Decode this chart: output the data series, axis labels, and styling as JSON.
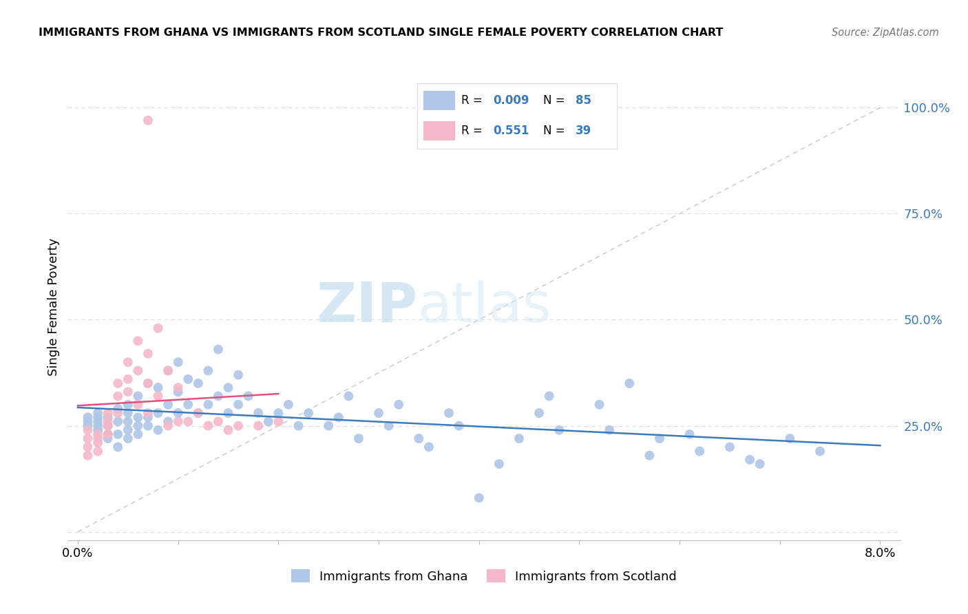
{
  "title": "IMMIGRANTS FROM GHANA VS IMMIGRANTS FROM SCOTLAND SINGLE FEMALE POVERTY CORRELATION CHART",
  "source": "Source: ZipAtlas.com",
  "ylabel": "Single Female Poverty",
  "ghana_R": 0.009,
  "ghana_N": 85,
  "scotland_R": 0.551,
  "scotland_N": 39,
  "ghana_color": "#aec6e8",
  "scotland_color": "#f5b8c8",
  "ghana_line_color": "#3a7abf",
  "scotland_line_color": "#e0507a",
  "diagonal_color": "#c8c8c8",
  "watermark_zip": "ZIP",
  "watermark_atlas": "atlas",
  "xlim": [
    0.0,
    0.08
  ],
  "ylim": [
    0.0,
    1.0
  ],
  "yticks": [
    0.0,
    0.25,
    0.5,
    0.75,
    1.0
  ],
  "ytick_labels": [
    "",
    "25.0%",
    "50.0%",
    "75.0%",
    "100.0%"
  ],
  "ghana_x": [
    0.001,
    0.001,
    0.001,
    0.002,
    0.002,
    0.002,
    0.002,
    0.002,
    0.003,
    0.003,
    0.003,
    0.003,
    0.004,
    0.004,
    0.004,
    0.004,
    0.005,
    0.005,
    0.005,
    0.005,
    0.005,
    0.006,
    0.006,
    0.006,
    0.006,
    0.007,
    0.007,
    0.007,
    0.008,
    0.008,
    0.008,
    0.009,
    0.009,
    0.009,
    0.01,
    0.01,
    0.01,
    0.011,
    0.011,
    0.012,
    0.012,
    0.013,
    0.013,
    0.014,
    0.014,
    0.015,
    0.015,
    0.016,
    0.016,
    0.017,
    0.018,
    0.019,
    0.02,
    0.021,
    0.022,
    0.023,
    0.025,
    0.026,
    0.027,
    0.028,
    0.03,
    0.031,
    0.032,
    0.034,
    0.035,
    0.037,
    0.038,
    0.04,
    0.042,
    0.044,
    0.046,
    0.048,
    0.052,
    0.055,
    0.058,
    0.061,
    0.065,
    0.068,
    0.071,
    0.074,
    0.047,
    0.053,
    0.057,
    0.062,
    0.067
  ],
  "ghana_y": [
    0.26,
    0.25,
    0.27,
    0.24,
    0.25,
    0.26,
    0.27,
    0.28,
    0.22,
    0.23,
    0.25,
    0.27,
    0.2,
    0.23,
    0.26,
    0.29,
    0.22,
    0.24,
    0.26,
    0.28,
    0.3,
    0.23,
    0.25,
    0.27,
    0.32,
    0.25,
    0.27,
    0.35,
    0.24,
    0.28,
    0.34,
    0.26,
    0.3,
    0.38,
    0.28,
    0.33,
    0.4,
    0.3,
    0.36,
    0.28,
    0.35,
    0.3,
    0.38,
    0.32,
    0.43,
    0.34,
    0.28,
    0.37,
    0.3,
    0.32,
    0.28,
    0.26,
    0.28,
    0.3,
    0.25,
    0.28,
    0.25,
    0.27,
    0.32,
    0.22,
    0.28,
    0.25,
    0.3,
    0.22,
    0.2,
    0.28,
    0.25,
    0.08,
    0.16,
    0.22,
    0.28,
    0.24,
    0.3,
    0.35,
    0.22,
    0.23,
    0.2,
    0.16,
    0.22,
    0.19,
    0.32,
    0.24,
    0.18,
    0.19,
    0.17
  ],
  "scotland_x": [
    0.001,
    0.001,
    0.001,
    0.001,
    0.002,
    0.002,
    0.002,
    0.002,
    0.003,
    0.003,
    0.003,
    0.003,
    0.004,
    0.004,
    0.004,
    0.005,
    0.005,
    0.005,
    0.006,
    0.006,
    0.006,
    0.007,
    0.007,
    0.007,
    0.008,
    0.008,
    0.009,
    0.009,
    0.01,
    0.01,
    0.011,
    0.012,
    0.013,
    0.014,
    0.015,
    0.016,
    0.018,
    0.02,
    0.007
  ],
  "scotland_y": [
    0.22,
    0.24,
    0.2,
    0.18,
    0.21,
    0.23,
    0.19,
    0.22,
    0.25,
    0.28,
    0.23,
    0.26,
    0.32,
    0.35,
    0.28,
    0.33,
    0.4,
    0.36,
    0.3,
    0.38,
    0.45,
    0.28,
    0.35,
    0.42,
    0.32,
    0.48,
    0.38,
    0.25,
    0.34,
    0.26,
    0.26,
    0.28,
    0.25,
    0.26,
    0.24,
    0.25,
    0.25,
    0.26,
    0.97
  ]
}
